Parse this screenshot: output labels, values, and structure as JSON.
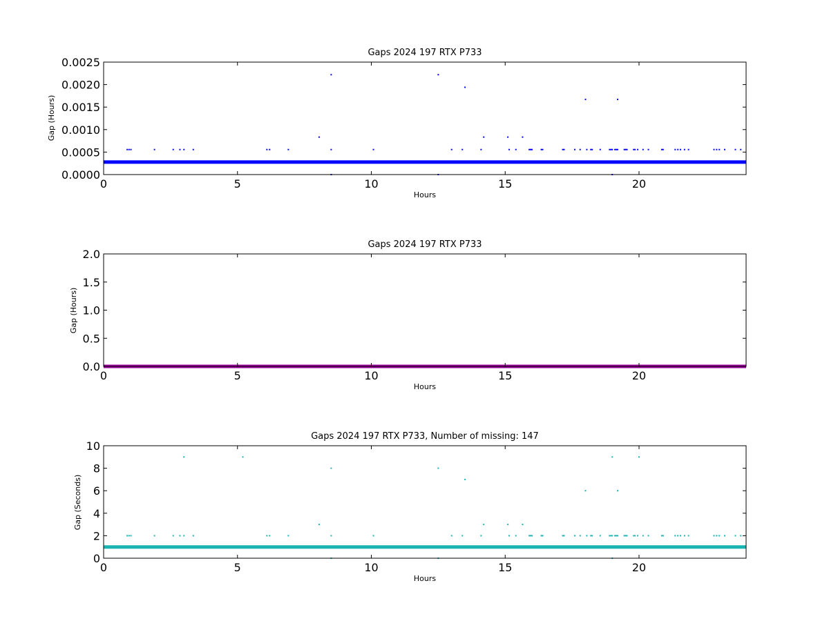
{
  "chart_data": [
    {
      "type": "scatter",
      "title": "Gaps 2024 197 RTX  P733",
      "xlabel": "Hours",
      "ylabel": "Gap (Hours)",
      "xlim": [
        0,
        24
      ],
      "ylim": [
        0,
        0.0025
      ],
      "xticks": [
        0,
        5,
        10,
        15,
        20
      ],
      "xtick_labels": [
        "0",
        "5",
        "10",
        "15",
        "20"
      ],
      "yticks": [
        0,
        0.0005,
        0.001,
        0.0015,
        0.002,
        0.0025
      ],
      "ytick_labels": [
        "0.0000",
        "0.0005",
        "0.0010",
        "0.0015",
        "0.0020",
        "0.0025"
      ],
      "color": "#0000ff",
      "baseline": {
        "y": 0.000278,
        "x_range": [
          0,
          24
        ]
      },
      "series": [
        {
          "points": [
            [
              0.88,
              0.000556
            ],
            [
              0.95,
              0.000556
            ],
            [
              1.02,
              0.000556
            ],
            [
              1.9,
              0.000556
            ],
            [
              2.6,
              0.000556
            ],
            [
              2.85,
              0.000556
            ],
            [
              3.0,
              0.000556
            ],
            [
              3.35,
              0.000556
            ],
            [
              6.1,
              0.000556
            ],
            [
              6.2,
              0.000556
            ],
            [
              6.9,
              0.000556
            ],
            [
              8.05,
              0.000833
            ],
            [
              8.5,
              0.00222
            ],
            [
              8.5,
              0.000556
            ],
            [
              8.5,
              0.0
            ],
            [
              10.08,
              0.000556
            ],
            [
              12.5,
              0.00222
            ],
            [
              12.5,
              0.0
            ],
            [
              13.0,
              0.000556
            ],
            [
              13.5,
              0.00194
            ],
            [
              13.4,
              0.000556
            ],
            [
              14.1,
              0.000556
            ],
            [
              14.2,
              0.000833
            ],
            [
              15.1,
              0.000833
            ],
            [
              15.15,
              0.000556
            ],
            [
              15.4,
              0.000556
            ],
            [
              15.65,
              0.000833
            ],
            [
              15.9,
              0.000556
            ],
            [
              15.95,
              0.000556
            ],
            [
              16.0,
              0.000556
            ],
            [
              16.35,
              0.000556
            ],
            [
              16.4,
              0.000556
            ],
            [
              17.15,
              0.000556
            ],
            [
              17.2,
              0.000556
            ],
            [
              17.6,
              0.000556
            ],
            [
              17.8,
              0.000556
            ],
            [
              18.0,
              0.00167
            ],
            [
              18.05,
              0.000556
            ],
            [
              18.2,
              0.000556
            ],
            [
              18.25,
              0.000556
            ],
            [
              18.55,
              0.000556
            ],
            [
              18.9,
              0.000556
            ],
            [
              18.95,
              0.000556
            ],
            [
              19.0,
              0.000556
            ],
            [
              19.0,
              0.0
            ],
            [
              19.1,
              0.000556
            ],
            [
              19.15,
              0.000556
            ],
            [
              19.2,
              0.00167
            ],
            [
              19.2,
              0.000556
            ],
            [
              19.45,
              0.000556
            ],
            [
              19.5,
              0.000556
            ],
            [
              19.55,
              0.000556
            ],
            [
              19.8,
              0.000556
            ],
            [
              19.85,
              0.000556
            ],
            [
              19.95,
              0.000556
            ],
            [
              20.15,
              0.000556
            ],
            [
              20.35,
              0.000556
            ],
            [
              20.85,
              0.000556
            ],
            [
              20.9,
              0.000556
            ],
            [
              21.35,
              0.000556
            ],
            [
              21.45,
              0.000556
            ],
            [
              21.55,
              0.000556
            ],
            [
              21.7,
              0.000556
            ],
            [
              21.85,
              0.000556
            ],
            [
              22.8,
              0.000556
            ],
            [
              22.9,
              0.000556
            ],
            [
              23.0,
              0.000556
            ],
            [
              23.2,
              0.000556
            ],
            [
              23.6,
              0.000556
            ],
            [
              23.8,
              0.000556
            ]
          ]
        }
      ]
    },
    {
      "type": "scatter",
      "title": "Gaps 2024 197 RTX  P733",
      "xlabel": "Hours",
      "ylabel": "Gap (Hours)",
      "xlim": [
        0,
        24
      ],
      "ylim": [
        0,
        2.0
      ],
      "xticks": [
        0,
        5,
        10,
        15,
        20
      ],
      "xtick_labels": [
        "0",
        "5",
        "10",
        "15",
        "20"
      ],
      "yticks": [
        0,
        0.5,
        1.0,
        1.5,
        2.0
      ],
      "ytick_labels": [
        "0.0",
        "0.5",
        "1.0",
        "1.5",
        "2.0"
      ],
      "color": "#990099",
      "baseline": {
        "y": 0.0,
        "x_range": [
          0,
          24
        ]
      },
      "series": [
        {
          "points": []
        }
      ]
    },
    {
      "type": "scatter",
      "title": "Gaps 2024 197 RTX  P733, Number of missing: 147",
      "xlabel": "Hours",
      "ylabel": "Gap (Seconds)",
      "xlim": [
        0,
        24
      ],
      "ylim": [
        0,
        10
      ],
      "xticks": [
        0,
        5,
        10,
        15,
        20
      ],
      "xtick_labels": [
        "0",
        "5",
        "10",
        "15",
        "20"
      ],
      "yticks": [
        0,
        2,
        4,
        6,
        8,
        10
      ],
      "ytick_labels": [
        "0",
        "2",
        "4",
        "6",
        "8",
        "10"
      ],
      "color": "#1ab3b3",
      "baseline": {
        "y": 1.0,
        "x_range": [
          0,
          24
        ]
      },
      "series": [
        {
          "points": [
            [
              0.88,
              2
            ],
            [
              0.95,
              2
            ],
            [
              1.02,
              2
            ],
            [
              1.9,
              2
            ],
            [
              2.6,
              2
            ],
            [
              2.85,
              2
            ],
            [
              3.0,
              9
            ],
            [
              3.0,
              2
            ],
            [
              3.35,
              2
            ],
            [
              5.2,
              9
            ],
            [
              6.1,
              2
            ],
            [
              6.2,
              2
            ],
            [
              6.9,
              2
            ],
            [
              8.05,
              3
            ],
            [
              8.5,
              8
            ],
            [
              8.5,
              2
            ],
            [
              8.5,
              0
            ],
            [
              10.08,
              2
            ],
            [
              12.5,
              8
            ],
            [
              12.5,
              0
            ],
            [
              13.0,
              2
            ],
            [
              13.4,
              2
            ],
            [
              13.5,
              7
            ],
            [
              14.1,
              2
            ],
            [
              14.2,
              3
            ],
            [
              15.1,
              3
            ],
            [
              15.15,
              2
            ],
            [
              15.4,
              2
            ],
            [
              15.65,
              3
            ],
            [
              15.9,
              2
            ],
            [
              15.95,
              2
            ],
            [
              16.0,
              2
            ],
            [
              16.35,
              2
            ],
            [
              16.4,
              2
            ],
            [
              17.15,
              2
            ],
            [
              17.2,
              2
            ],
            [
              17.6,
              2
            ],
            [
              17.8,
              2
            ],
            [
              18.0,
              6
            ],
            [
              18.05,
              2
            ],
            [
              18.2,
              2
            ],
            [
              18.25,
              2
            ],
            [
              18.55,
              2
            ],
            [
              18.9,
              2
            ],
            [
              18.95,
              2
            ],
            [
              19.0,
              9
            ],
            [
              19.0,
              2
            ],
            [
              19.0,
              0
            ],
            [
              19.1,
              2
            ],
            [
              19.15,
              2
            ],
            [
              19.2,
              6
            ],
            [
              19.2,
              2
            ],
            [
              19.45,
              2
            ],
            [
              19.5,
              2
            ],
            [
              19.55,
              2
            ],
            [
              19.8,
              2
            ],
            [
              19.85,
              2
            ],
            [
              19.95,
              2
            ],
            [
              20.0,
              9
            ],
            [
              20.15,
              2
            ],
            [
              20.35,
              2
            ],
            [
              20.85,
              2
            ],
            [
              20.9,
              2
            ],
            [
              21.35,
              2
            ],
            [
              21.45,
              2
            ],
            [
              21.55,
              2
            ],
            [
              21.7,
              2
            ],
            [
              21.85,
              2
            ],
            [
              22.8,
              2
            ],
            [
              22.9,
              2
            ],
            [
              23.0,
              2
            ],
            [
              23.2,
              2
            ],
            [
              23.6,
              2
            ],
            [
              23.8,
              2
            ]
          ]
        }
      ]
    }
  ]
}
